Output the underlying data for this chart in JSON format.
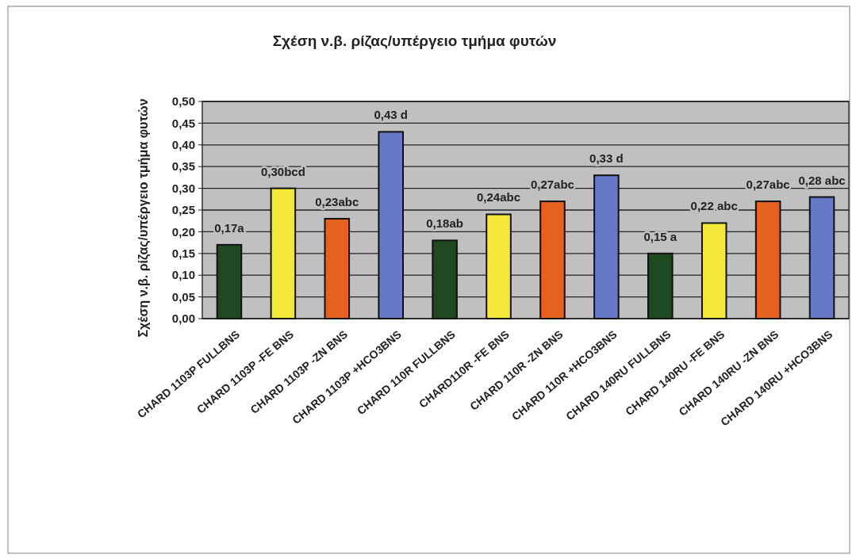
{
  "chart_data": {
    "type": "bar",
    "title": "Σχέση ν.β. ρίζας/υπέργειο τμήμα φυτών",
    "ylabel": "Σχέση ν.β. ρίζας/υπέργειο τμήμα φυτών",
    "categories": [
      "CHARD 1103P FULLBNS",
      "CHARD 1103P -FE BNS",
      "CHARD 1103P -ZN BNS",
      "CHARD 1103P +HCO3BNS",
      "CHARD 110R FULLBNS",
      "CHARD110R -FE BNS",
      "CHARD 110R -ZN BNS",
      "CHARD 110R +HCO3BNS",
      "CHARD 140RU FULLBNS",
      "CHARD 140RU -FE BNS",
      "CHARD 140RU -ZN BNS",
      "CHARD 140RU +HCO3BNS"
    ],
    "values": [
      0.17,
      0.3,
      0.23,
      0.43,
      0.18,
      0.24,
      0.27,
      0.33,
      0.15,
      0.22,
      0.27,
      0.28
    ],
    "value_labels": [
      "0,17a",
      "0,30bcd",
      "0,23abc",
      "0,43 d",
      "0,18ab",
      "0,24abc",
      "0,27abc",
      "0,33 d",
      "0,15 a",
      "0,22 abc",
      "0,27abc",
      "0,28 abc"
    ],
    "colors": [
      "#1f4a1f",
      "#f5e83a",
      "#e8621f",
      "#6678c8",
      "#1f4a1f",
      "#f5e83a",
      "#e8621f",
      "#6678c8",
      "#1f4a1f",
      "#f5e83a",
      "#e8621f",
      "#6678c8"
    ],
    "ylim": [
      0,
      0.5
    ],
    "yticks": [
      {
        "value": 0,
        "label": "0,00"
      },
      {
        "value": 0.05,
        "label": "0,05"
      },
      {
        "value": 0.1,
        "label": "0,10"
      },
      {
        "value": 0.15,
        "label": "0,15"
      },
      {
        "value": 0.2,
        "label": "0,20"
      },
      {
        "value": 0.25,
        "label": "0,25"
      },
      {
        "value": 0.3,
        "label": "0,30"
      },
      {
        "value": 0.35,
        "label": "0,35"
      },
      {
        "value": 0.4,
        "label": "0,40"
      },
      {
        "value": 0.45,
        "label": "0,45"
      },
      {
        "value": 0.5,
        "label": "0,50"
      }
    ],
    "grid": "y"
  }
}
